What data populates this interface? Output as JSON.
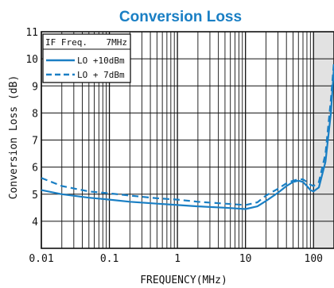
{
  "chart_data": {
    "type": "line",
    "title": "Conversion Loss",
    "xlabel": "FREQUENCY(MHz)",
    "ylabel": "Conversion Loss (dB)",
    "x_scale": "log",
    "xlim": [
      0.01,
      200
    ],
    "ylim": [
      3,
      11
    ],
    "x_ticks": [
      0.01,
      0.1,
      1,
      10,
      100
    ],
    "x_tick_labels": [
      "0.01",
      "0.1",
      "1",
      "10",
      "100"
    ],
    "y_ticks": [
      4,
      5,
      6,
      7,
      8,
      9,
      10,
      11
    ],
    "y_tick_labels": [
      "4",
      "5",
      "6",
      "7",
      "8",
      "9",
      "10",
      "11"
    ],
    "grid": true,
    "shaded_region_x": [
      100,
      200
    ],
    "legend": {
      "placement": "top-left",
      "header": "IF Freq.",
      "header_value": "7MHz",
      "entries": [
        "LO +10dBm",
        "LO + 7dBm"
      ]
    },
    "series": [
      {
        "name": "LO +10dBm",
        "style": "solid",
        "color": "#1a7fc4",
        "x": [
          0.01,
          0.02,
          0.05,
          0.1,
          0.2,
          0.5,
          1,
          2,
          5,
          10,
          15,
          20,
          30,
          40,
          50,
          60,
          70,
          80,
          90,
          100,
          120,
          150,
          180,
          200
        ],
        "y": [
          5.15,
          5.0,
          4.87,
          4.8,
          4.72,
          4.65,
          4.6,
          4.55,
          4.5,
          4.45,
          4.55,
          4.75,
          5.05,
          5.3,
          5.45,
          5.5,
          5.45,
          5.3,
          5.15,
          5.1,
          5.25,
          6.2,
          8.0,
          9.7
        ]
      },
      {
        "name": "LO + 7dBm",
        "style": "dashed",
        "color": "#1a7fc4",
        "x": [
          0.01,
          0.02,
          0.05,
          0.1,
          0.2,
          0.5,
          1,
          2,
          5,
          10,
          15,
          20,
          30,
          40,
          50,
          60,
          70,
          80,
          90,
          100,
          120,
          150,
          180,
          200
        ],
        "y": [
          5.6,
          5.3,
          5.1,
          5.03,
          4.95,
          4.85,
          4.8,
          4.72,
          4.65,
          4.6,
          4.7,
          4.95,
          5.2,
          5.4,
          5.5,
          5.55,
          5.55,
          5.45,
          5.35,
          5.3,
          5.45,
          6.5,
          8.5,
          9.9
        ]
      }
    ]
  }
}
